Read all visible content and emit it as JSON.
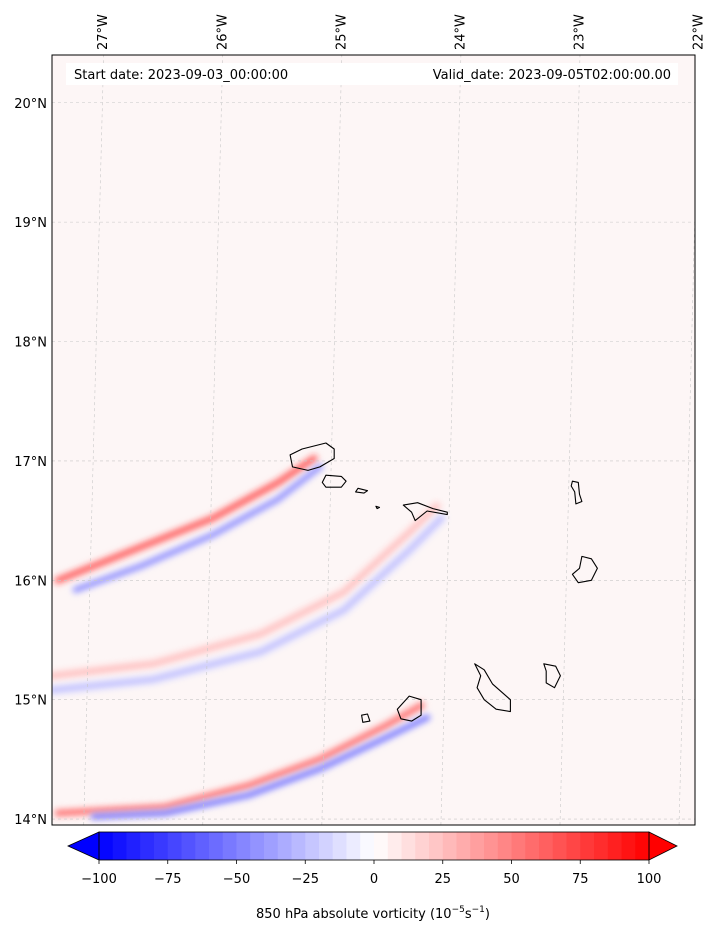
{
  "info": {
    "start_date": "Start date: 2023-09-03_00:00:00",
    "valid_date": "Valid_date: 2023-09-05T02:00:00.00"
  },
  "axes": {
    "lon_labels": [
      {
        "lon": -27,
        "text": "27°W"
      },
      {
        "lon": -26,
        "text": "26°W"
      },
      {
        "lon": -25,
        "text": "25°W"
      },
      {
        "lon": -24,
        "text": "24°W"
      },
      {
        "lon": -23,
        "text": "23°W"
      },
      {
        "lon": -22,
        "text": "22°W"
      }
    ],
    "lat_labels": [
      {
        "lat": 20,
        "text": "20°N"
      },
      {
        "lat": 19,
        "text": "19°N"
      },
      {
        "lat": 18,
        "text": "18°N"
      },
      {
        "lat": 17,
        "text": "17°N"
      },
      {
        "lat": 16,
        "text": "16°N"
      },
      {
        "lat": 15,
        "text": "15°N"
      },
      {
        "lat": 14,
        "text": "14°N"
      }
    ],
    "lon_range": [
      -27.35,
      -21.95
    ],
    "lat_range": [
      13.95,
      20.4
    ]
  },
  "colorbar": {
    "label_prefix": "850 hPa absolute vorticity (10",
    "label_exp1": "−5",
    "label_mid": "s",
    "label_exp2": "−1",
    "label_suffix": ")",
    "tick_values": [
      -100,
      -75,
      -50,
      -25,
      0,
      25,
      50,
      75,
      100
    ],
    "tick_labels": [
      "−100",
      "−75",
      "−50",
      "−25",
      "0",
      "25",
      "50",
      "75",
      "100"
    ],
    "range": [
      -100,
      100
    ],
    "levels": 40,
    "neg_color": "#0000ff",
    "pos_color": "#ff0000",
    "mid_color": "#ffffff"
  },
  "colors": {
    "background_tint": "#fdf6f6",
    "gridline": "#c8c8c8",
    "coastline": "#000000"
  },
  "vorticity_streaks": [
    {
      "name": "santo-antao-wake",
      "value": 80,
      "points": [
        [
          -27.3,
          16.0
        ],
        [
          -26.6,
          16.28
        ],
        [
          -26.0,
          16.52
        ],
        [
          -25.45,
          16.82
        ],
        [
          -25.15,
          17.02
        ]
      ],
      "width": 0.045
    },
    {
      "name": "santo-antao-wake-neg",
      "value": -55,
      "points": [
        [
          -27.15,
          15.92
        ],
        [
          -26.6,
          16.12
        ],
        [
          -26.0,
          16.38
        ],
        [
          -25.45,
          16.68
        ],
        [
          -25.1,
          16.95
        ]
      ],
      "width": 0.04
    },
    {
      "name": "sao-nicolau-wake",
      "value": 30,
      "points": [
        [
          -27.35,
          15.2
        ],
        [
          -26.5,
          15.3
        ],
        [
          -25.6,
          15.55
        ],
        [
          -24.9,
          15.9
        ],
        [
          -24.35,
          16.4
        ],
        [
          -24.12,
          16.62
        ]
      ],
      "width": 0.05
    },
    {
      "name": "sao-nicolau-wake-neg",
      "value": -30,
      "points": [
        [
          -27.35,
          15.08
        ],
        [
          -26.5,
          15.17
        ],
        [
          -25.6,
          15.4
        ],
        [
          -24.9,
          15.75
        ],
        [
          -24.35,
          16.25
        ],
        [
          -24.08,
          16.52
        ]
      ],
      "width": 0.05
    },
    {
      "name": "fogo-wake",
      "value": 70,
      "points": [
        [
          -27.3,
          14.05
        ],
        [
          -26.4,
          14.1
        ],
        [
          -25.7,
          14.28
        ],
        [
          -25.1,
          14.5
        ],
        [
          -24.55,
          14.78
        ],
        [
          -24.25,
          14.95
        ]
      ],
      "width": 0.045
    },
    {
      "name": "fogo-wake-neg",
      "value": -65,
      "points": [
        [
          -27.0,
          14.02
        ],
        [
          -26.4,
          14.05
        ],
        [
          -25.7,
          14.2
        ],
        [
          -25.1,
          14.42
        ],
        [
          -24.55,
          14.68
        ],
        [
          -24.2,
          14.85
        ]
      ],
      "width": 0.04
    }
  ],
  "islands": [
    {
      "name": "santo-antao",
      "coords": [
        [
          -25.35,
          17.05
        ],
        [
          -25.25,
          17.1
        ],
        [
          -25.05,
          17.15
        ],
        [
          -24.98,
          17.1
        ],
        [
          -24.98,
          17.02
        ],
        [
          -25.1,
          16.95
        ],
        [
          -25.2,
          16.92
        ],
        [
          -25.33,
          16.95
        ]
      ]
    },
    {
      "name": "sao-vicente",
      "coords": [
        [
          -25.05,
          16.88
        ],
        [
          -24.92,
          16.87
        ],
        [
          -24.88,
          16.83
        ],
        [
          -24.92,
          16.78
        ],
        [
          -25.05,
          16.78
        ],
        [
          -25.08,
          16.82
        ]
      ]
    },
    {
      "name": "santa-luzia",
      "coords": [
        [
          -24.78,
          16.77
        ],
        [
          -24.7,
          16.75
        ],
        [
          -24.73,
          16.73
        ],
        [
          -24.8,
          16.74
        ]
      ]
    },
    {
      "name": "ilheu-razo",
      "coords": [
        [
          -24.63,
          16.62
        ],
        [
          -24.6,
          16.61
        ],
        [
          -24.62,
          16.6
        ]
      ]
    },
    {
      "name": "sao-nicolau",
      "coords": [
        [
          -24.4,
          16.63
        ],
        [
          -24.28,
          16.65
        ],
        [
          -24.15,
          16.6
        ],
        [
          -24.03,
          16.57
        ],
        [
          -24.03,
          16.55
        ],
        [
          -24.2,
          16.58
        ],
        [
          -24.3,
          16.5
        ],
        [
          -24.33,
          16.57
        ]
      ]
    },
    {
      "name": "sal",
      "coords": [
        [
          -22.98,
          16.83
        ],
        [
          -22.93,
          16.82
        ],
        [
          -22.92,
          16.72
        ],
        [
          -22.9,
          16.66
        ],
        [
          -22.95,
          16.64
        ],
        [
          -22.96,
          16.74
        ],
        [
          -22.99,
          16.79
        ]
      ]
    },
    {
      "name": "boa-vista",
      "coords": [
        [
          -22.9,
          16.2
        ],
        [
          -22.82,
          16.18
        ],
        [
          -22.77,
          16.1
        ],
        [
          -22.82,
          16.0
        ],
        [
          -22.93,
          15.98
        ],
        [
          -22.98,
          16.05
        ],
        [
          -22.92,
          16.1
        ]
      ]
    },
    {
      "name": "maio",
      "coords": [
        [
          -23.22,
          15.3
        ],
        [
          -23.12,
          15.28
        ],
        [
          -23.08,
          15.2
        ],
        [
          -23.13,
          15.1
        ],
        [
          -23.2,
          15.14
        ],
        [
          -23.2,
          15.24
        ]
      ]
    },
    {
      "name": "santiago",
      "coords": [
        [
          -23.8,
          15.3
        ],
        [
          -23.72,
          15.25
        ],
        [
          -23.65,
          15.13
        ],
        [
          -23.5,
          15.0
        ],
        [
          -23.5,
          14.9
        ],
        [
          -23.62,
          14.92
        ],
        [
          -23.72,
          15.0
        ],
        [
          -23.78,
          15.1
        ],
        [
          -23.75,
          15.2
        ]
      ]
    },
    {
      "name": "fogo",
      "coords": [
        [
          -24.45,
          14.92
        ],
        [
          -24.35,
          15.03
        ],
        [
          -24.25,
          15.0
        ],
        [
          -24.25,
          14.87
        ],
        [
          -24.33,
          14.82
        ],
        [
          -24.42,
          14.84
        ]
      ]
    },
    {
      "name": "brava",
      "coords": [
        [
          -24.75,
          14.87
        ],
        [
          -24.7,
          14.88
        ],
        [
          -24.68,
          14.82
        ],
        [
          -24.74,
          14.81
        ]
      ]
    }
  ]
}
